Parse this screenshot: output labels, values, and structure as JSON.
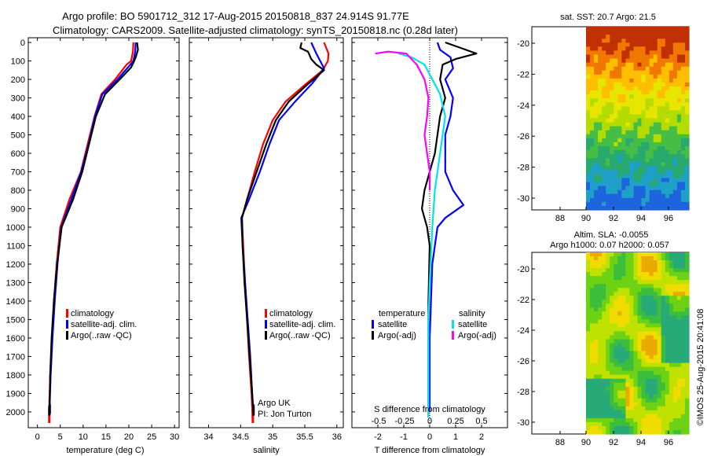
{
  "header": {
    "line1": "Argo profile: BO 5901712_312 17-Aug-2015 20150818_837 24.914S 91.77E",
    "line2": "Climatology: CARS2009. Satellite-adjusted climatology: synTS_20150818.nc (0.28d later)"
  },
  "colors": {
    "climatology": "#ff0000",
    "satellite": "#0000ff",
    "argo": "#000000",
    "salinity_satellite": "#00e5e5",
    "salinity_argo": "#ff00ff"
  },
  "chart_data": [
    {
      "id": "temperature",
      "type": "line",
      "xlabel": "temperature (deg C)",
      "ylabel": "",
      "xlim": [
        -2,
        31
      ],
      "ylim": [
        2080,
        0
      ],
      "xticks": [
        "0",
        "5",
        "10",
        "15",
        "20",
        "25",
        "30"
      ],
      "yticks": [
        "0",
        "100",
        "200",
        "300",
        "400",
        "500",
        "600",
        "700",
        "800",
        "900",
        "1000",
        "1100",
        "1200",
        "1300",
        "1400",
        "1500",
        "1600",
        "1700",
        "1800",
        "1900",
        "2000"
      ],
      "legend": [
        "climatology",
        "satellite-adj. clim.",
        "Argo(..raw -QC)"
      ],
      "series": [
        {
          "name": "climatology",
          "color": "#ff0000",
          "points": [
            [
              21,
              0
            ],
            [
              20.9,
              50
            ],
            [
              20.5,
              100
            ],
            [
              19.5,
              120
            ],
            [
              17,
              200
            ],
            [
              14,
              280
            ],
            [
              12.5,
              400
            ],
            [
              11,
              550
            ],
            [
              9.5,
              700
            ],
            [
              7,
              850
            ],
            [
              5,
              1000
            ],
            [
              4.2,
              1200
            ],
            [
              3.6,
              1400
            ],
            [
              3.2,
              1600
            ],
            [
              2.8,
              1800
            ],
            [
              2.6,
              1950
            ],
            [
              2.6,
              2060
            ]
          ]
        },
        {
          "name": "satellite-adj. clim.",
          "color": "#0000ff",
          "points": [
            [
              21.5,
              0
            ],
            [
              21.4,
              50
            ],
            [
              21,
              100
            ],
            [
              20,
              130
            ],
            [
              17.5,
              200
            ],
            [
              14.2,
              280
            ],
            [
              12.6,
              400
            ],
            [
              11.2,
              550
            ],
            [
              9.6,
              700
            ],
            [
              7.4,
              850
            ],
            [
              5.2,
              1000
            ],
            [
              4.4,
              1200
            ],
            [
              3.8,
              1400
            ],
            [
              3.3,
              1600
            ],
            [
              2.9,
              1800
            ],
            [
              2.7,
              1950
            ],
            [
              2.7,
              2010
            ]
          ]
        },
        {
          "name": "Argo(..raw -QC)",
          "color": "#000000",
          "points": [
            [
              21.8,
              0
            ],
            [
              22,
              40
            ],
            [
              21.5,
              80
            ],
            [
              21,
              110
            ],
            [
              20.5,
              135
            ],
            [
              18,
              200
            ],
            [
              14.8,
              280
            ],
            [
              12.8,
              400
            ],
            [
              11.3,
              550
            ],
            [
              9.8,
              700
            ],
            [
              7.8,
              850
            ],
            [
              5.3,
              1000
            ],
            [
              4.3,
              1200
            ],
            [
              3.6,
              1400
            ],
            [
              3.1,
              1600
            ],
            [
              2.8,
              1800
            ],
            [
              2.7,
              1950
            ],
            [
              2.6,
              2020
            ]
          ]
        }
      ]
    },
    {
      "id": "salinity",
      "type": "line",
      "xlabel": "salinity",
      "ylabel": "",
      "xlim": [
        33.7,
        36.1
      ],
      "ylim": [
        2080,
        0
      ],
      "xticks": [
        "34",
        "34.5",
        "35",
        "35.5",
        "36"
      ],
      "legend": [
        "climatology",
        "satellite-adj. clim.",
        "Argo(..raw -QC)"
      ],
      "annotations": [
        "Argo UK",
        "PI: Jon Turton"
      ],
      "series": [
        {
          "name": "climatology",
          "color": "#ff0000",
          "points": [
            [
              35.8,
              0
            ],
            [
              35.87,
              60
            ],
            [
              35.86,
              100
            ],
            [
              35.78,
              150
            ],
            [
              35.5,
              230
            ],
            [
              35.2,
              320
            ],
            [
              35,
              420
            ],
            [
              34.85,
              550
            ],
            [
              34.72,
              700
            ],
            [
              34.6,
              850
            ],
            [
              34.52,
              950
            ],
            [
              34.54,
              1100
            ],
            [
              34.57,
              1300
            ],
            [
              34.6,
              1500
            ],
            [
              34.63,
              1700
            ],
            [
              34.67,
              1900
            ],
            [
              34.69,
              2060
            ]
          ]
        },
        {
          "name": "satellite-adj. clim.",
          "color": "#0000ff",
          "points": [
            [
              35.6,
              0
            ],
            [
              35.68,
              60
            ],
            [
              35.74,
              100
            ],
            [
              35.8,
              140
            ],
            [
              35.62,
              220
            ],
            [
              35.35,
              320
            ],
            [
              35.1,
              420
            ],
            [
              34.95,
              550
            ],
            [
              34.8,
              700
            ],
            [
              34.63,
              850
            ],
            [
              34.51,
              950
            ],
            [
              34.53,
              1100
            ],
            [
              34.57,
              1300
            ],
            [
              34.61,
              1500
            ],
            [
              34.65,
              1700
            ],
            [
              34.68,
              1900
            ],
            [
              34.7,
              2010
            ]
          ]
        },
        {
          "name": "Argo(..raw -QC)",
          "color": "#000000",
          "points": [
            [
              35.45,
              0
            ],
            [
              35.43,
              30
            ],
            [
              35.55,
              50
            ],
            [
              35.6,
              90
            ],
            [
              35.68,
              120
            ],
            [
              35.8,
              150
            ],
            [
              35.5,
              240
            ],
            [
              35.25,
              320
            ],
            [
              35.05,
              420
            ],
            [
              34.9,
              550
            ],
            [
              34.75,
              700
            ],
            [
              34.6,
              850
            ],
            [
              34.52,
              950
            ],
            [
              34.53,
              1100
            ],
            [
              34.56,
              1300
            ],
            [
              34.6,
              1500
            ],
            [
              34.64,
              1700
            ],
            [
              34.68,
              1900
            ],
            [
              34.7,
              2020
            ]
          ]
        }
      ]
    },
    {
      "id": "difference",
      "type": "line",
      "xlabel": "T difference from climatology",
      "xlabel_top": "S difference from climatology",
      "xlim": [
        -3,
        3
      ],
      "ylim": [
        2080,
        0
      ],
      "xticks": [
        "-2",
        "-1",
        "0",
        "1",
        "2"
      ],
      "xticks_top": [
        "-0.5",
        "-0.25",
        "0",
        "0.25",
        "0.5"
      ],
      "legend_headings": [
        "temperature",
        "salinity"
      ],
      "legend": [
        "satellite",
        "Argo(-adj)",
        "satellite",
        "Argo(-adj)"
      ],
      "series": [
        {
          "name": "satellite",
          "quantity": "temperature",
          "color": "#0000ff",
          "points": [
            [
              0.3,
              0
            ],
            [
              0.4,
              40
            ],
            [
              0.8,
              80
            ],
            [
              0.9,
              140
            ],
            [
              0.6,
              200
            ],
            [
              0.9,
              300
            ],
            [
              0.8,
              400
            ],
            [
              0.6,
              500
            ],
            [
              0.6,
              600
            ],
            [
              0.6,
              700
            ],
            [
              0.9,
              800
            ],
            [
              1.3,
              880
            ],
            [
              0.6,
              950
            ],
            [
              0.3,
              1000
            ],
            [
              0.1,
              1200
            ],
            [
              0,
              1600
            ],
            [
              0,
              2000
            ]
          ]
        },
        {
          "name": "Argo(-adj)",
          "quantity": "temperature",
          "color": "#000000",
          "points": [
            [
              0.6,
              0
            ],
            [
              1.2,
              30
            ],
            [
              1.8,
              60
            ],
            [
              1,
              90
            ],
            [
              0.5,
              120
            ],
            [
              0.4,
              200
            ],
            [
              0.6,
              300
            ],
            [
              0.4,
              400
            ],
            [
              0.3,
              500
            ],
            [
              0.2,
              600
            ],
            [
              0,
              700
            ],
            [
              -0.2,
              800
            ],
            [
              -0.3,
              900
            ],
            [
              -0.1,
              1000
            ],
            [
              0,
              1100
            ],
            [
              -0.05,
              1400
            ],
            [
              -0.05,
              1800
            ],
            [
              -0.05,
              2030
            ]
          ]
        },
        {
          "name": "satellite",
          "quantity": "salinity",
          "color": "#00e5e5",
          "points": [
            [
              -1.2,
              60
            ],
            [
              -0.7,
              80
            ],
            [
              -0.2,
              120
            ],
            [
              0.1,
              200
            ],
            [
              0.4,
              280
            ],
            [
              0.6,
              400
            ],
            [
              0.5,
              500
            ],
            [
              0.4,
              600
            ],
            [
              0.3,
              700
            ],
            [
              0.2,
              800
            ],
            [
              0.1,
              1000
            ],
            [
              0,
              1300
            ],
            [
              -0.05,
              1500
            ],
            [
              -0.05,
              1800
            ],
            [
              -0.05,
              2030
            ]
          ]
        },
        {
          "name": "Argo(-adj)",
          "quantity": "salinity",
          "color": "#ff00ff",
          "points": [
            [
              -2.1,
              60
            ],
            [
              -1.6,
              50
            ],
            [
              -0.9,
              60
            ],
            [
              -0.5,
              120
            ],
            [
              -0.2,
              200
            ],
            [
              -0.05,
              300
            ],
            [
              -0.1,
              400
            ],
            [
              -0.2,
              500
            ],
            [
              -0.1,
              600
            ],
            [
              0,
              700
            ],
            [
              0,
              800
            ]
          ]
        }
      ]
    },
    {
      "id": "sst_map",
      "type": "heatmap",
      "title": "sat. SST: 20.7 Argo: 21.5",
      "xticks": [
        "88",
        "90",
        "92",
        "94",
        "96"
      ],
      "yticks": [
        "-20",
        "-22",
        "-24",
        "-26",
        "-28",
        "-30"
      ]
    },
    {
      "id": "sla_map",
      "type": "heatmap",
      "title_line1": "Altim. SLA: -0.0055",
      "title_line2": "Argo h1000: 0.07 h2000: 0.057",
      "xticks": [
        "88",
        "90",
        "92",
        "94",
        "96"
      ],
      "yticks": [
        "-20",
        "-22",
        "-24",
        "-26",
        "-28",
        "-30"
      ]
    }
  ],
  "footer": {
    "stamp": "©IMOS 25-Aug-2015 20:41:08"
  }
}
